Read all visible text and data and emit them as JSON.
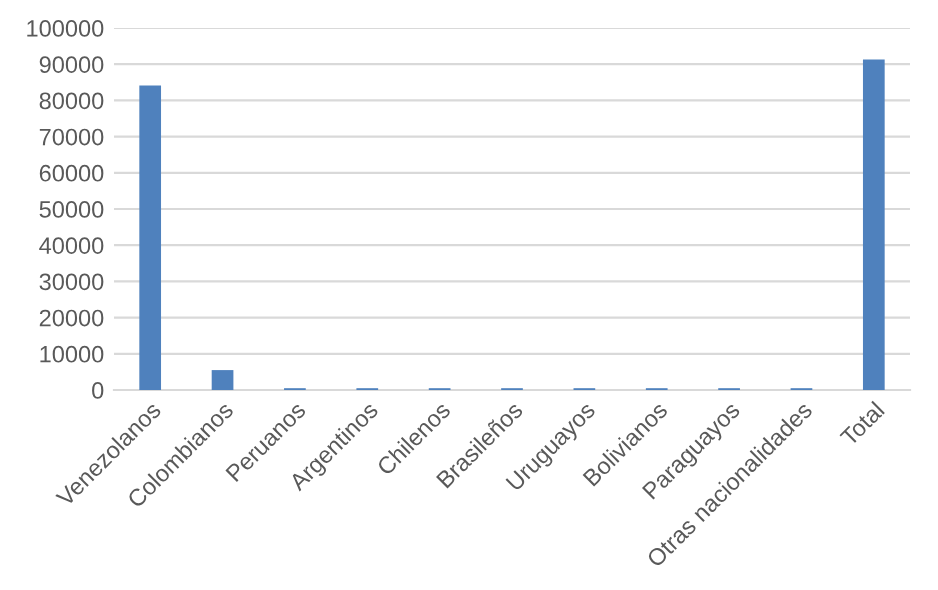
{
  "chart_data": {
    "type": "bar",
    "categories": [
      "Venezolanos",
      "Colombianos",
      "Peruanos",
      "Argentinos",
      "Chilenos",
      "Brasileños",
      "Uruguayos",
      "Bolivianos",
      "Paraguayos",
      "Otras nacionalidades",
      "Total"
    ],
    "values": [
      84100,
      5500,
      500,
      500,
      500,
      500,
      500,
      500,
      500,
      500,
      91300
    ],
    "color": "#4f81bd",
    "ylim": [
      0,
      100000
    ],
    "yticks": [
      0,
      10000,
      20000,
      30000,
      40000,
      50000,
      60000,
      70000,
      80000,
      90000,
      100000
    ],
    "grid": "y",
    "legend": false
  }
}
